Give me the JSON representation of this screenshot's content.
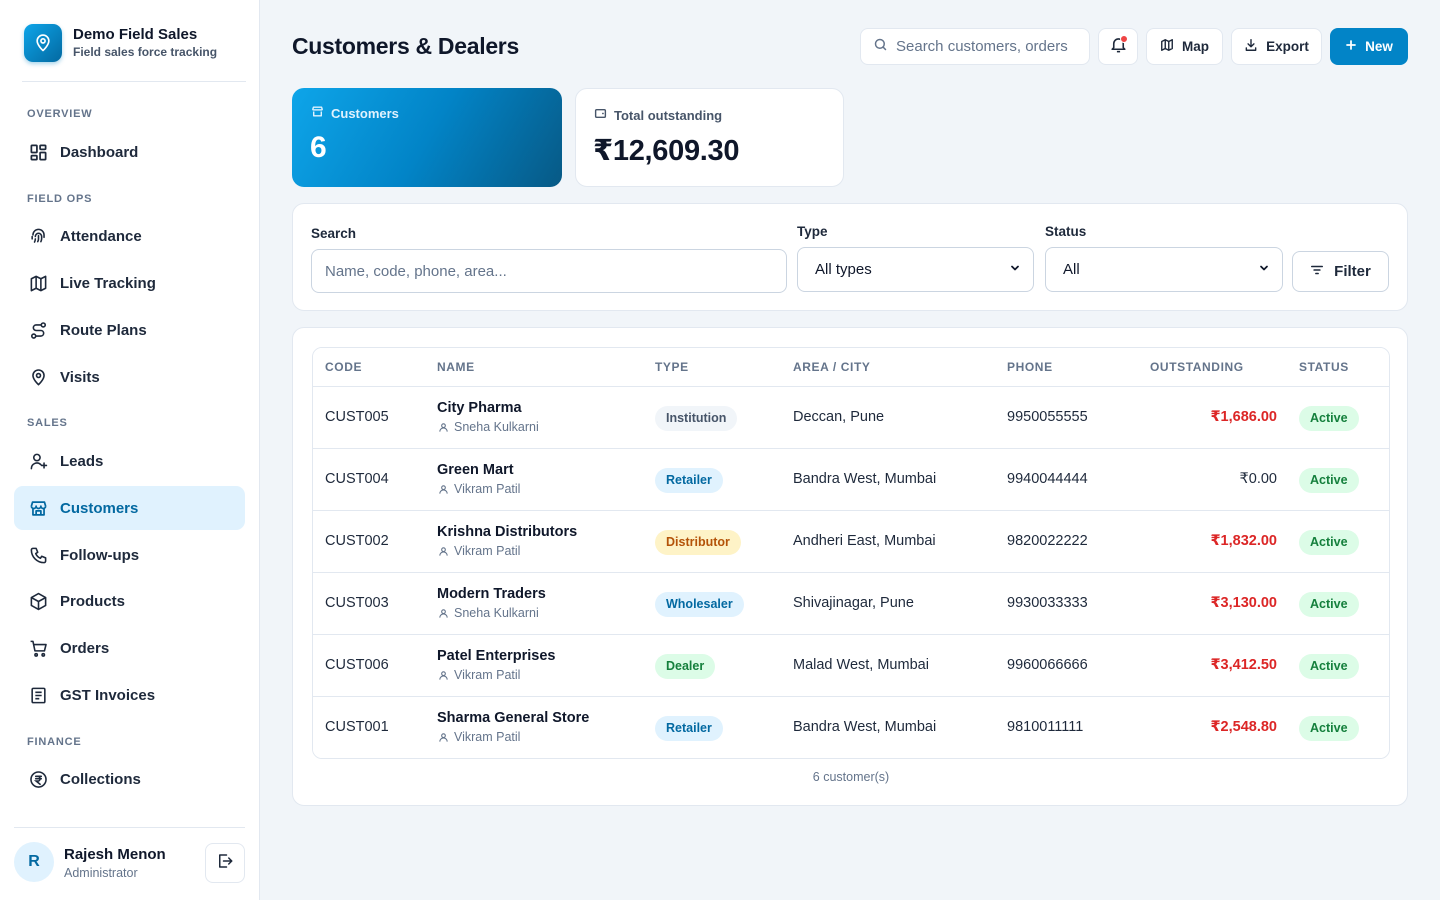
{
  "app": {
    "name": "Demo Field Sales",
    "tagline": "Field sales force tracking"
  },
  "sidebar": {
    "sections": {
      "overview": "OVERVIEW",
      "field_ops": "FIELD OPS",
      "sales": "SALES",
      "finance": "FINANCE"
    },
    "items": {
      "dashboard": "Dashboard",
      "attendance": "Attendance",
      "live_tracking": "Live Tracking",
      "route_plans": "Route Plans",
      "visits": "Visits",
      "leads": "Leads",
      "customers": "Customers",
      "follow_ups": "Follow-ups",
      "products": "Products",
      "orders": "Orders",
      "gst_invoices": "GST Invoices",
      "collections": "Collections"
    },
    "active_item": "customers"
  },
  "user": {
    "initial": "R",
    "name": "Rajesh Menon",
    "role": "Administrator"
  },
  "header": {
    "title": "Customers & Dealers",
    "search_placeholder": "Search customers, orders",
    "map_label": "Map",
    "export_label": "Export",
    "new_label": "New"
  },
  "stats": {
    "customers_label": "Customers",
    "customers_value": "6",
    "outstanding_label": "Total outstanding",
    "outstanding_value": "₹12,609.30"
  },
  "filters": {
    "search_label": "Search",
    "search_placeholder": "Name, code, phone, area...",
    "type_label": "Type",
    "type_value": "All types",
    "status_label": "Status",
    "status_value": "All",
    "filter_button": "Filter"
  },
  "table": {
    "columns": {
      "code": "CODE",
      "name": "NAME",
      "type": "TYPE",
      "area": "AREA / CITY",
      "phone": "PHONE",
      "outstanding": "OUTSTANDING",
      "status": "STATUS"
    },
    "rows": [
      {
        "code": "CUST005",
        "name": "City Pharma",
        "rep": "Sneha Kulkarni",
        "type": "Institution",
        "area": "Deccan, Pune",
        "phone": "9950055555",
        "outstanding": "₹1,686.00",
        "status": "Active"
      },
      {
        "code": "CUST004",
        "name": "Green Mart",
        "rep": "Vikram Patil",
        "type": "Retailer",
        "area": "Bandra West, Mumbai",
        "phone": "9940044444",
        "outstanding": "₹0.00",
        "status": "Active"
      },
      {
        "code": "CUST002",
        "name": "Krishna Distributors",
        "rep": "Vikram Patil",
        "type": "Distributor",
        "area": "Andheri East, Mumbai",
        "phone": "9820022222",
        "outstanding": "₹1,832.00",
        "status": "Active"
      },
      {
        "code": "CUST003",
        "name": "Modern Traders",
        "rep": "Sneha Kulkarni",
        "type": "Wholesaler",
        "area": "Shivajinagar, Pune",
        "phone": "9930033333",
        "outstanding": "₹3,130.00",
        "status": "Active"
      },
      {
        "code": "CUST006",
        "name": "Patel Enterprises",
        "rep": "Vikram Patil",
        "type": "Dealer",
        "area": "Malad West, Mumbai",
        "phone": "9960066666",
        "outstanding": "₹3,412.50",
        "status": "Active"
      },
      {
        "code": "CUST001",
        "name": "Sharma General Store",
        "rep": "Vikram Patil",
        "type": "Retailer",
        "area": "Bandra West, Mumbai",
        "phone": "9810011111",
        "outstanding": "₹2,548.80",
        "status": "Active"
      }
    ],
    "footer": "6 customer(s)"
  },
  "colors": {
    "accent": "#0284c7",
    "accent_dark": "#075985",
    "danger": "#dc2626",
    "success": "#15803d"
  }
}
